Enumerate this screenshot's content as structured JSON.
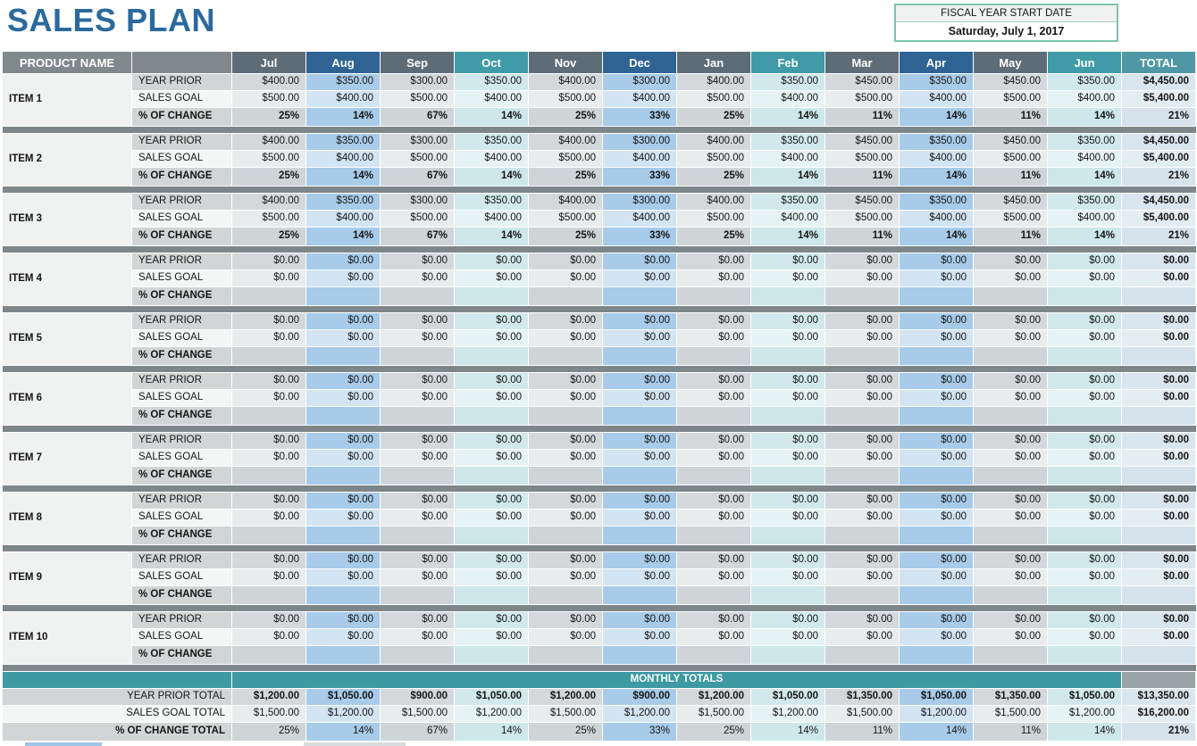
{
  "title": "SALES PLAN",
  "fiscal": {
    "label": "FISCAL YEAR START DATE",
    "value": "Saturday, July 1, 2017"
  },
  "colors": {
    "title_blue": "#2b6a9e",
    "header_plain_grey": "#7f898b",
    "header_grey": "#5e6c78",
    "header_blue": "#2e6394",
    "header_teal": "#419aa7",
    "total_header_teal": "#4f97a4",
    "banner_teal": "#3d99a2",
    "accent_border_green": "#7cc4ae",
    "separator_grey": "#7d8789",
    "column_blue_light": "#a7cbe9",
    "column_teal_light": "#d1e9ed",
    "column_grey_light": "#d4d8da",
    "total_column_light": "#d9e6ef"
  },
  "table": {
    "product_header": "PRODUCT NAME",
    "total_header": "TOTAL",
    "row_labels": {
      "year_prior": "YEAR PRIOR",
      "sales_goal": "SALES GOAL",
      "pct_change": "% OF CHANGE"
    },
    "months": [
      {
        "label": "Jul",
        "theme": "grey"
      },
      {
        "label": "Aug",
        "theme": "blue"
      },
      {
        "label": "Sep",
        "theme": "grey"
      },
      {
        "label": "Oct",
        "theme": "teal"
      },
      {
        "label": "Nov",
        "theme": "grey"
      },
      {
        "label": "Dec",
        "theme": "blue"
      },
      {
        "label": "Jan",
        "theme": "grey"
      },
      {
        "label": "Feb",
        "theme": "teal"
      },
      {
        "label": "Mar",
        "theme": "grey"
      },
      {
        "label": "Apr",
        "theme": "blue"
      },
      {
        "label": "May",
        "theme": "grey"
      },
      {
        "label": "Jun",
        "theme": "teal"
      }
    ],
    "items": [
      {
        "name": "ITEM 1",
        "year_prior": [
          "$400.00",
          "$350.00",
          "$300.00",
          "$350.00",
          "$400.00",
          "$300.00",
          "$400.00",
          "$350.00",
          "$450.00",
          "$350.00",
          "$450.00",
          "$350.00"
        ],
        "sales_goal": [
          "$500.00",
          "$400.00",
          "$500.00",
          "$400.00",
          "$500.00",
          "$400.00",
          "$500.00",
          "$400.00",
          "$500.00",
          "$400.00",
          "$500.00",
          "$400.00"
        ],
        "pct_change": [
          "25%",
          "14%",
          "67%",
          "14%",
          "25%",
          "33%",
          "25%",
          "14%",
          "11%",
          "14%",
          "11%",
          "14%"
        ],
        "totals": {
          "year_prior": "$4,450.00",
          "sales_goal": "$5,400.00",
          "pct_change": "21%"
        }
      },
      {
        "name": "ITEM 2",
        "year_prior": [
          "$400.00",
          "$350.00",
          "$300.00",
          "$350.00",
          "$400.00",
          "$300.00",
          "$400.00",
          "$350.00",
          "$450.00",
          "$350.00",
          "$450.00",
          "$350.00"
        ],
        "sales_goal": [
          "$500.00",
          "$400.00",
          "$500.00",
          "$400.00",
          "$500.00",
          "$400.00",
          "$500.00",
          "$400.00",
          "$500.00",
          "$400.00",
          "$500.00",
          "$400.00"
        ],
        "pct_change": [
          "25%",
          "14%",
          "67%",
          "14%",
          "25%",
          "33%",
          "25%",
          "14%",
          "11%",
          "14%",
          "11%",
          "14%"
        ],
        "totals": {
          "year_prior": "$4,450.00",
          "sales_goal": "$5,400.00",
          "pct_change": "21%"
        }
      },
      {
        "name": "ITEM 3",
        "year_prior": [
          "$400.00",
          "$350.00",
          "$300.00",
          "$350.00",
          "$400.00",
          "$300.00",
          "$400.00",
          "$350.00",
          "$450.00",
          "$350.00",
          "$450.00",
          "$350.00"
        ],
        "sales_goal": [
          "$500.00",
          "$400.00",
          "$500.00",
          "$400.00",
          "$500.00",
          "$400.00",
          "$500.00",
          "$400.00",
          "$500.00",
          "$400.00",
          "$500.00",
          "$400.00"
        ],
        "pct_change": [
          "25%",
          "14%",
          "67%",
          "14%",
          "25%",
          "33%",
          "25%",
          "14%",
          "11%",
          "14%",
          "11%",
          "14%"
        ],
        "totals": {
          "year_prior": "$4,450.00",
          "sales_goal": "$5,400.00",
          "pct_change": "21%"
        }
      },
      {
        "name": "ITEM 4",
        "year_prior": [
          "$0.00",
          "$0.00",
          "$0.00",
          "$0.00",
          "$0.00",
          "$0.00",
          "$0.00",
          "$0.00",
          "$0.00",
          "$0.00",
          "$0.00",
          "$0.00"
        ],
        "sales_goal": [
          "$0.00",
          "$0.00",
          "$0.00",
          "$0.00",
          "$0.00",
          "$0.00",
          "$0.00",
          "$0.00",
          "$0.00",
          "$0.00",
          "$0.00",
          "$0.00"
        ],
        "pct_change": [
          "",
          "",
          "",
          "",
          "",
          "",
          "",
          "",
          "",
          "",
          "",
          ""
        ],
        "totals": {
          "year_prior": "$0.00",
          "sales_goal": "$0.00",
          "pct_change": ""
        }
      },
      {
        "name": "ITEM 5",
        "year_prior": [
          "$0.00",
          "$0.00",
          "$0.00",
          "$0.00",
          "$0.00",
          "$0.00",
          "$0.00",
          "$0.00",
          "$0.00",
          "$0.00",
          "$0.00",
          "$0.00"
        ],
        "sales_goal": [
          "$0.00",
          "$0.00",
          "$0.00",
          "$0.00",
          "$0.00",
          "$0.00",
          "$0.00",
          "$0.00",
          "$0.00",
          "$0.00",
          "$0.00",
          "$0.00"
        ],
        "pct_change": [
          "",
          "",
          "",
          "",
          "",
          "",
          "",
          "",
          "",
          "",
          "",
          ""
        ],
        "totals": {
          "year_prior": "$0.00",
          "sales_goal": "$0.00",
          "pct_change": ""
        }
      },
      {
        "name": "ITEM 6",
        "year_prior": [
          "$0.00",
          "$0.00",
          "$0.00",
          "$0.00",
          "$0.00",
          "$0.00",
          "$0.00",
          "$0.00",
          "$0.00",
          "$0.00",
          "$0.00",
          "$0.00"
        ],
        "sales_goal": [
          "$0.00",
          "$0.00",
          "$0.00",
          "$0.00",
          "$0.00",
          "$0.00",
          "$0.00",
          "$0.00",
          "$0.00",
          "$0.00",
          "$0.00",
          "$0.00"
        ],
        "pct_change": [
          "",
          "",
          "",
          "",
          "",
          "",
          "",
          "",
          "",
          "",
          "",
          ""
        ],
        "totals": {
          "year_prior": "$0.00",
          "sales_goal": "$0.00",
          "pct_change": ""
        }
      },
      {
        "name": "ITEM 7",
        "year_prior": [
          "$0.00",
          "$0.00",
          "$0.00",
          "$0.00",
          "$0.00",
          "$0.00",
          "$0.00",
          "$0.00",
          "$0.00",
          "$0.00",
          "$0.00",
          "$0.00"
        ],
        "sales_goal": [
          "$0.00",
          "$0.00",
          "$0.00",
          "$0.00",
          "$0.00",
          "$0.00",
          "$0.00",
          "$0.00",
          "$0.00",
          "$0.00",
          "$0.00",
          "$0.00"
        ],
        "pct_change": [
          "",
          "",
          "",
          "",
          "",
          "",
          "",
          "",
          "",
          "",
          "",
          ""
        ],
        "totals": {
          "year_prior": "$0.00",
          "sales_goal": "$0.00",
          "pct_change": ""
        }
      },
      {
        "name": "ITEM 8",
        "year_prior": [
          "$0.00",
          "$0.00",
          "$0.00",
          "$0.00",
          "$0.00",
          "$0.00",
          "$0.00",
          "$0.00",
          "$0.00",
          "$0.00",
          "$0.00",
          "$0.00"
        ],
        "sales_goal": [
          "$0.00",
          "$0.00",
          "$0.00",
          "$0.00",
          "$0.00",
          "$0.00",
          "$0.00",
          "$0.00",
          "$0.00",
          "$0.00",
          "$0.00",
          "$0.00"
        ],
        "pct_change": [
          "",
          "",
          "",
          "",
          "",
          "",
          "",
          "",
          "",
          "",
          "",
          ""
        ],
        "totals": {
          "year_prior": "$0.00",
          "sales_goal": "$0.00",
          "pct_change": ""
        }
      },
      {
        "name": "ITEM 9",
        "year_prior": [
          "$0.00",
          "$0.00",
          "$0.00",
          "$0.00",
          "$0.00",
          "$0.00",
          "$0.00",
          "$0.00",
          "$0.00",
          "$0.00",
          "$0.00",
          "$0.00"
        ],
        "sales_goal": [
          "$0.00",
          "$0.00",
          "$0.00",
          "$0.00",
          "$0.00",
          "$0.00",
          "$0.00",
          "$0.00",
          "$0.00",
          "$0.00",
          "$0.00",
          "$0.00"
        ],
        "pct_change": [
          "",
          "",
          "",
          "",
          "",
          "",
          "",
          "",
          "",
          "",
          "",
          ""
        ],
        "totals": {
          "year_prior": "$0.00",
          "sales_goal": "$0.00",
          "pct_change": ""
        }
      },
      {
        "name": "ITEM 10",
        "year_prior": [
          "$0.00",
          "$0.00",
          "$0.00",
          "$0.00",
          "$0.00",
          "$0.00",
          "$0.00",
          "$0.00",
          "$0.00",
          "$0.00",
          "$0.00",
          "$0.00"
        ],
        "sales_goal": [
          "$0.00",
          "$0.00",
          "$0.00",
          "$0.00",
          "$0.00",
          "$0.00",
          "$0.00",
          "$0.00",
          "$0.00",
          "$0.00",
          "$0.00",
          "$0.00"
        ],
        "pct_change": [
          "",
          "",
          "",
          "",
          "",
          "",
          "",
          "",
          "",
          "",
          "",
          ""
        ],
        "totals": {
          "year_prior": "$0.00",
          "sales_goal": "$0.00",
          "pct_change": ""
        }
      }
    ],
    "monthly_totals": {
      "banner": "MONTHLY TOTALS",
      "year_prior": {
        "label": "YEAR PRIOR TOTAL",
        "values": [
          "$1,200.00",
          "$1,050.00",
          "$900.00",
          "$1,050.00",
          "$1,200.00",
          "$900.00",
          "$1,200.00",
          "$1,050.00",
          "$1,350.00",
          "$1,050.00",
          "$1,350.00",
          "$1,050.00"
        ],
        "total": "$13,350.00"
      },
      "sales_goal": {
        "label": "SALES GOAL TOTAL",
        "values": [
          "$1,500.00",
          "$1,200.00",
          "$1,500.00",
          "$1,200.00",
          "$1,500.00",
          "$1,200.00",
          "$1,500.00",
          "$1,200.00",
          "$1,500.00",
          "$1,200.00",
          "$1,500.00",
          "$1,200.00"
        ],
        "total": "$16,200.00"
      },
      "pct_change": {
        "label": "% OF CHANGE TOTAL",
        "values": [
          "25%",
          "14%",
          "67%",
          "14%",
          "25%",
          "33%",
          "25%",
          "14%",
          "11%",
          "14%",
          "11%",
          "14%"
        ],
        "total": "21%"
      }
    }
  }
}
